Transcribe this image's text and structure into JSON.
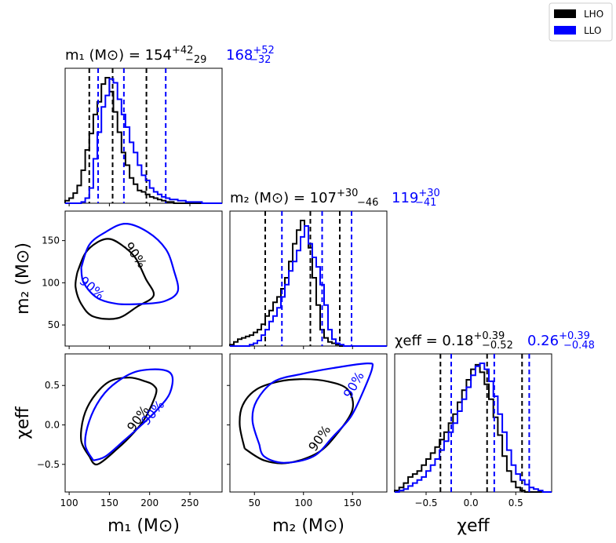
{
  "legend": {
    "items": [
      {
        "label": "LHO",
        "color": "#000000"
      },
      {
        "label": "LLO",
        "color": "#0000ff"
      }
    ]
  },
  "colors": {
    "lho": "#000000",
    "llo": "#0000ff"
  },
  "chart_data": {
    "type": "corner",
    "parameters": [
      "m1",
      "m2",
      "chi_eff"
    ],
    "titles": {
      "m1": {
        "prefix": "m₁ (M⊙) = ",
        "lho": {
          "median": "154",
          "plus": "+42",
          "minus": "−29"
        },
        "llo": {
          "median": "168",
          "plus": "+52",
          "minus": "−32"
        }
      },
      "m2": {
        "prefix": "m₂ (M⊙) = ",
        "lho": {
          "median": "107",
          "plus": "+30",
          "minus": "−46"
        },
        "llo": {
          "median": "119",
          "plus": "+30",
          "minus": "−41"
        }
      },
      "chi": {
        "prefix": "χeff = ",
        "lho": {
          "median": "0.18",
          "plus": "+0.39",
          "minus": "−0.52"
        },
        "llo": {
          "median": "0.26",
          "plus": "+0.39",
          "minus": "−0.48"
        }
      }
    },
    "axis_labels": {
      "m1": "m₁ (M⊙)",
      "m2": "m₂ (M⊙)",
      "chi": "χeff"
    },
    "ranges": {
      "m1": [
        95,
        290
      ],
      "m2": [
        25,
        185
      ],
      "chi": [
        -0.85,
        0.9
      ]
    },
    "ticks": {
      "m1": [
        {
          "v": 100,
          "label": "100"
        },
        {
          "v": 150,
          "label": "150"
        },
        {
          "v": 200,
          "label": "200"
        },
        {
          "v": 250,
          "label": "250"
        }
      ],
      "m2": [
        {
          "v": 50,
          "label": "50"
        },
        {
          "v": 100,
          "label": "100"
        },
        {
          "v": 150,
          "label": "150"
        }
      ],
      "chi": [
        {
          "v": -0.5,
          "label": "−0.5"
        },
        {
          "v": 0.0,
          "label": "0.0"
        },
        {
          "v": 0.5,
          "label": "0.5"
        }
      ]
    },
    "quantiles": {
      "lho": {
        "m1": [
          125,
          154,
          196
        ],
        "m2": [
          61,
          107,
          137
        ],
        "chi": [
          -0.34,
          0.18,
          0.57
        ]
      },
      "llo": {
        "m1": [
          136,
          168,
          220
        ],
        "m2": [
          78,
          119,
          149
        ],
        "chi": [
          -0.22,
          0.26,
          0.65
        ]
      }
    },
    "histograms": {
      "m1": {
        "lho": {
          "start": 95,
          "step": 5,
          "values": [
            0.02,
            0.04,
            0.08,
            0.14,
            0.26,
            0.42,
            0.55,
            0.7,
            0.8,
            0.94,
            0.99,
            0.88,
            0.72,
            0.56,
            0.4,
            0.3,
            0.2,
            0.15,
            0.1,
            0.09,
            0.07,
            0.05,
            0.04,
            0.03,
            0.02,
            0.01,
            0.01,
            0,
            0,
            0,
            0,
            0,
            0,
            0,
            0,
            0,
            0,
            0,
            0
          ]
        },
        "llo": {
          "start": 95,
          "step": 5,
          "values": [
            0,
            0,
            0,
            0,
            0.01,
            0.04,
            0.12,
            0.35,
            0.56,
            0.76,
            0.85,
            0.98,
            0.95,
            0.82,
            0.7,
            0.6,
            0.48,
            0.4,
            0.3,
            0.22,
            0.18,
            0.12,
            0.09,
            0.07,
            0.05,
            0.04,
            0.03,
            0.03,
            0.02,
            0.02,
            0.01,
            0.01,
            0.01,
            0.01,
            0,
            0,
            0,
            0,
            0
          ]
        }
      },
      "m2": {
        "lho": {
          "start": 25,
          "step": 4,
          "values": [
            0.01,
            0.03,
            0.05,
            0.06,
            0.07,
            0.08,
            0.1,
            0.12,
            0.16,
            0.22,
            0.26,
            0.32,
            0.36,
            0.42,
            0.5,
            0.62,
            0.75,
            0.85,
            0.92,
            0.88,
            0.72,
            0.5,
            0.3,
            0.12,
            0.06,
            0.03,
            0.02,
            0.01,
            0,
            0,
            0,
            0,
            0,
            0,
            0,
            0,
            0,
            0,
            0,
            0
          ]
        },
        "llo": {
          "start": 25,
          "step": 4,
          "values": [
            0,
            0,
            0,
            0,
            0,
            0.01,
            0.02,
            0.04,
            0.08,
            0.12,
            0.18,
            0.22,
            0.28,
            0.36,
            0.45,
            0.55,
            0.62,
            0.7,
            0.8,
            0.88,
            0.75,
            0.65,
            0.58,
            0.45,
            0.3,
            0.12,
            0.05,
            0.02,
            0.01,
            0,
            0,
            0,
            0,
            0,
            0,
            0,
            0,
            0,
            0,
            0
          ]
        }
      },
      "chi": {
        "lho": {
          "start": -0.85,
          "step": 0.05,
          "values": [
            0.01,
            0.03,
            0.06,
            0.1,
            0.12,
            0.14,
            0.18,
            0.22,
            0.26,
            0.3,
            0.35,
            0.4,
            0.46,
            0.52,
            0.6,
            0.68,
            0.75,
            0.82,
            0.85,
            0.8,
            0.72,
            0.62,
            0.5,
            0.38,
            0.24,
            0.14,
            0.07,
            0.03,
            0.01,
            0,
            0,
            0,
            0,
            0,
            0
          ]
        },
        "llo": {
          "start": -0.85,
          "step": 0.05,
          "values": [
            0,
            0.01,
            0.02,
            0.04,
            0.06,
            0.08,
            0.1,
            0.14,
            0.18,
            0.22,
            0.28,
            0.34,
            0.4,
            0.46,
            0.54,
            0.62,
            0.7,
            0.78,
            0.84,
            0.86,
            0.82,
            0.74,
            0.64,
            0.52,
            0.4,
            0.28,
            0.18,
            0.12,
            0.08,
            0.05,
            0.03,
            0.02,
            0.01,
            0,
            0
          ]
        }
      }
    },
    "contours": {
      "m2_vs_m1": {
        "lho": {
          "label": "90%",
          "points": [
            [
              110,
              112
            ],
            [
              120,
              135
            ],
            [
              135,
              148
            ],
            [
              150,
              152
            ],
            [
              165,
              145
            ],
            [
              182,
              130
            ],
            [
              195,
              105
            ],
            [
              205,
              85
            ],
            [
              185,
              72
            ],
            [
              160,
              58
            ],
            [
              130,
              60
            ],
            [
              115,
              75
            ],
            [
              108,
              95
            ],
            [
              110,
              112
            ]
          ]
        },
        "llo": {
          "label": "90%",
          "points": [
            [
              115,
              118
            ],
            [
              125,
              145
            ],
            [
              145,
              160
            ],
            [
              170,
              170
            ],
            [
              198,
              160
            ],
            [
              220,
              140
            ],
            [
              230,
              115
            ],
            [
              235,
              90
            ],
            [
              218,
              78
            ],
            [
              190,
              75
            ],
            [
              160,
              75
            ],
            [
              135,
              82
            ],
            [
              118,
              100
            ],
            [
              115,
              118
            ]
          ]
        }
      },
      "chi_vs_m1": {
        "lho": {
          "label": "90%",
          "points": [
            [
              125,
              -0.4
            ],
            [
              115,
              -0.2
            ],
            [
              118,
              0.1
            ],
            [
              130,
              0.35
            ],
            [
              150,
              0.55
            ],
            [
              175,
              0.6
            ],
            [
              195,
              0.55
            ],
            [
              205,
              0.5
            ],
            [
              208,
              0.4
            ],
            [
              195,
              0.1
            ],
            [
              180,
              -0.1
            ],
            [
              160,
              -0.3
            ],
            [
              135,
              -0.5
            ],
            [
              125,
              -0.4
            ]
          ]
        },
        "llo": {
          "label": "90%",
          "points": [
            [
              130,
              -0.45
            ],
            [
              120,
              -0.25
            ],
            [
              125,
              0.05
            ],
            [
              140,
              0.35
            ],
            [
              160,
              0.55
            ],
            [
              185,
              0.68
            ],
            [
              215,
              0.7
            ],
            [
              228,
              0.62
            ],
            [
              225,
              0.4
            ],
            [
              210,
              0.2
            ],
            [
              190,
              0.0
            ],
            [
              168,
              -0.2
            ],
            [
              145,
              -0.4
            ],
            [
              130,
              -0.45
            ]
          ]
        }
      },
      "chi_vs_m2": {
        "lho": {
          "label": "90%",
          "points": [
            [
              40,
              -0.3
            ],
            [
              35,
              0.0
            ],
            [
              38,
              0.25
            ],
            [
              52,
              0.45
            ],
            [
              75,
              0.55
            ],
            [
              100,
              0.58
            ],
            [
              125,
              0.55
            ],
            [
              145,
              0.45
            ],
            [
              150,
              0.2
            ],
            [
              135,
              -0.1
            ],
            [
              115,
              -0.35
            ],
            [
              85,
              -0.48
            ],
            [
              60,
              -0.45
            ],
            [
              40,
              -0.3
            ]
          ]
        },
        "llo": {
          "label": "90%",
          "points": [
            [
              55,
              -0.25
            ],
            [
              48,
              0.05
            ],
            [
              52,
              0.3
            ],
            [
              70,
              0.55
            ],
            [
              100,
              0.65
            ],
            [
              130,
              0.72
            ],
            [
              165,
              0.78
            ],
            [
              170,
              0.72
            ],
            [
              160,
              0.4
            ],
            [
              148,
              0.1
            ],
            [
              130,
              -0.15
            ],
            [
              110,
              -0.4
            ],
            [
              80,
              -0.48
            ],
            [
              60,
              -0.4
            ],
            [
              55,
              -0.25
            ]
          ]
        }
      }
    }
  }
}
